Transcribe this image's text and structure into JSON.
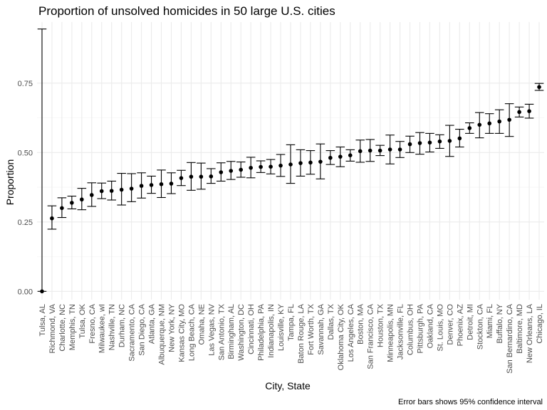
{
  "chart_data": {
    "type": "scatter",
    "title": "Proportion of unsolved homicides in 50 large U.S. cities",
    "xlabel": "City, State",
    "ylabel": "Proportion",
    "caption": "Error bars shows 95% confidence interval",
    "ylim": [
      -0.03,
      0.97
    ],
    "yticks": [
      0.0,
      0.25,
      0.5,
      0.75
    ],
    "ytick_labels": [
      "0.00",
      "0.25",
      "0.50",
      "0.75"
    ],
    "grid": true,
    "legend": "none",
    "categories": [
      "Tulsa, AL",
      "Richmond, VA",
      "Charlotte, NC",
      "Memphis, TN",
      "Tulsa, OK",
      "Fresno, CA",
      "Milwaukee, wI",
      "Nashville, TN",
      "Durham, NC",
      "Sacramento, CA",
      "San Diego, CA",
      "Atlanta, GA",
      "Albuquerque, NM",
      "New York, NY",
      "Kansas City, MO",
      "Long Beach, CA",
      "Omaha, NE",
      "Las Vegas, NV",
      "San Antonio, TX",
      "Birmingham, AL",
      "Washington, DC",
      "Cincinnati, OH",
      "Philadelphia, PA",
      "Indianapolis, IN",
      "Louisville, KY",
      "Tampa, FL",
      "Baton Rouge, LA",
      "Fort Worth, TX",
      "Savannah, GA",
      "Dallas, TX",
      "Oklahoma City, OK",
      "Los Angeles, CA",
      "Boston, MA",
      "San Francisco, CA",
      "Houston, TX",
      "Minneapolis, MN",
      "Jacksonville, FL",
      "Columbus, OH",
      "Pittsburgh, PA",
      "Oakland, CA",
      "St. Louis, MO",
      "Denver, CO",
      "Phoenix, AZ",
      "Detroit, MI",
      "Stockton, CA",
      "Miami, FL",
      "Buffalo, NY",
      "San Bernardino, CA",
      "Baltimore, MD",
      "New Orleans, LA",
      "Chicago, IL"
    ],
    "estimate": [
      0.0,
      0.263,
      0.3,
      0.319,
      0.331,
      0.347,
      0.361,
      0.362,
      0.366,
      0.37,
      0.38,
      0.383,
      0.386,
      0.388,
      0.408,
      0.413,
      0.413,
      0.414,
      0.429,
      0.434,
      0.438,
      0.445,
      0.448,
      0.449,
      0.453,
      0.457,
      0.462,
      0.464,
      0.467,
      0.481,
      0.485,
      0.49,
      0.505,
      0.507,
      0.507,
      0.511,
      0.511,
      0.53,
      0.534,
      0.536,
      0.54,
      0.542,
      0.551,
      0.588,
      0.6,
      0.605,
      0.612,
      0.618,
      0.646,
      0.649,
      0.736
    ],
    "ci_low": [
      0.0,
      0.224,
      0.266,
      0.297,
      0.294,
      0.306,
      0.334,
      0.329,
      0.311,
      0.323,
      0.336,
      0.353,
      0.338,
      0.352,
      0.381,
      0.364,
      0.368,
      0.389,
      0.397,
      0.403,
      0.411,
      0.409,
      0.428,
      0.423,
      0.414,
      0.389,
      0.415,
      0.422,
      0.405,
      0.457,
      0.449,
      0.469,
      0.465,
      0.468,
      0.489,
      0.459,
      0.482,
      0.5,
      0.494,
      0.502,
      0.515,
      0.486,
      0.52,
      0.569,
      0.553,
      0.569,
      0.569,
      0.558,
      0.628,
      0.624,
      0.724
    ],
    "ci_high": [
      0.945,
      0.308,
      0.337,
      0.343,
      0.371,
      0.391,
      0.39,
      0.397,
      0.425,
      0.424,
      0.427,
      0.415,
      0.437,
      0.427,
      0.436,
      0.464,
      0.462,
      0.442,
      0.463,
      0.468,
      0.466,
      0.483,
      0.47,
      0.475,
      0.493,
      0.528,
      0.51,
      0.507,
      0.531,
      0.507,
      0.52,
      0.51,
      0.545,
      0.547,
      0.526,
      0.563,
      0.54,
      0.559,
      0.572,
      0.569,
      0.564,
      0.598,
      0.584,
      0.607,
      0.644,
      0.64,
      0.654,
      0.676,
      0.664,
      0.674,
      0.749
    ]
  }
}
